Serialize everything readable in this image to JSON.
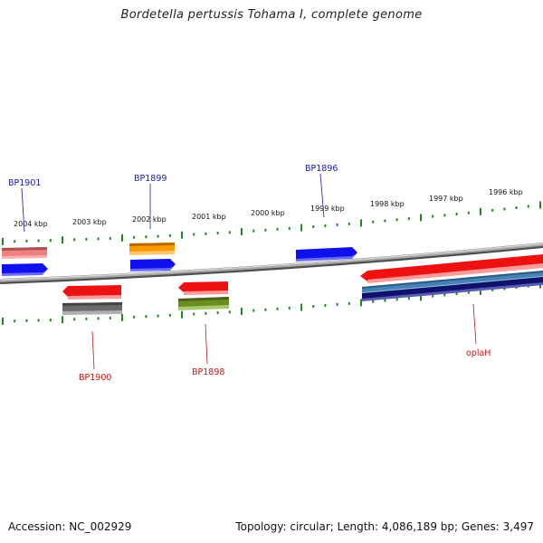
{
  "title": "Bordetella pertussis Tohama I, complete genome",
  "footer": {
    "accession": "Accession: NC_002929",
    "summary": "Topology: circular; Length: 4,086,189 bp; Genes: 3,497"
  },
  "colors": {
    "backbone": "#8a8a8a",
    "tick": "#1f8a1f",
    "gene_label_forward": "#1a1ab0",
    "gene_label_reverse": "#cc1111"
  },
  "scale": {
    "unit": "kbp",
    "labels": [
      {
        "kbp": 2004,
        "text": "2004 kbp"
      },
      {
        "kbp": 2003,
        "text": "2003 kbp"
      },
      {
        "kbp": 2002,
        "text": "2002 kbp"
      },
      {
        "kbp": 2001,
        "text": "2001 kbp"
      },
      {
        "kbp": 2000,
        "text": "2000 kbp"
      },
      {
        "kbp": 1999,
        "text": "1999 kbp"
      },
      {
        "kbp": 1998,
        "text": "1998 kbp"
      },
      {
        "kbp": 1997,
        "text": "1997 kbp"
      },
      {
        "kbp": 1996,
        "text": "1996 kbp"
      }
    ]
  },
  "gene_labels": [
    {
      "name": "BP1901",
      "strand": "forward"
    },
    {
      "name": "BP1899",
      "strand": "forward"
    },
    {
      "name": "BP1896",
      "strand": "forward"
    },
    {
      "name": "BP1900",
      "strand": "reverse"
    },
    {
      "name": "BP1898",
      "strand": "reverse"
    },
    {
      "name": "oplaH",
      "strand": "reverse"
    }
  ]
}
